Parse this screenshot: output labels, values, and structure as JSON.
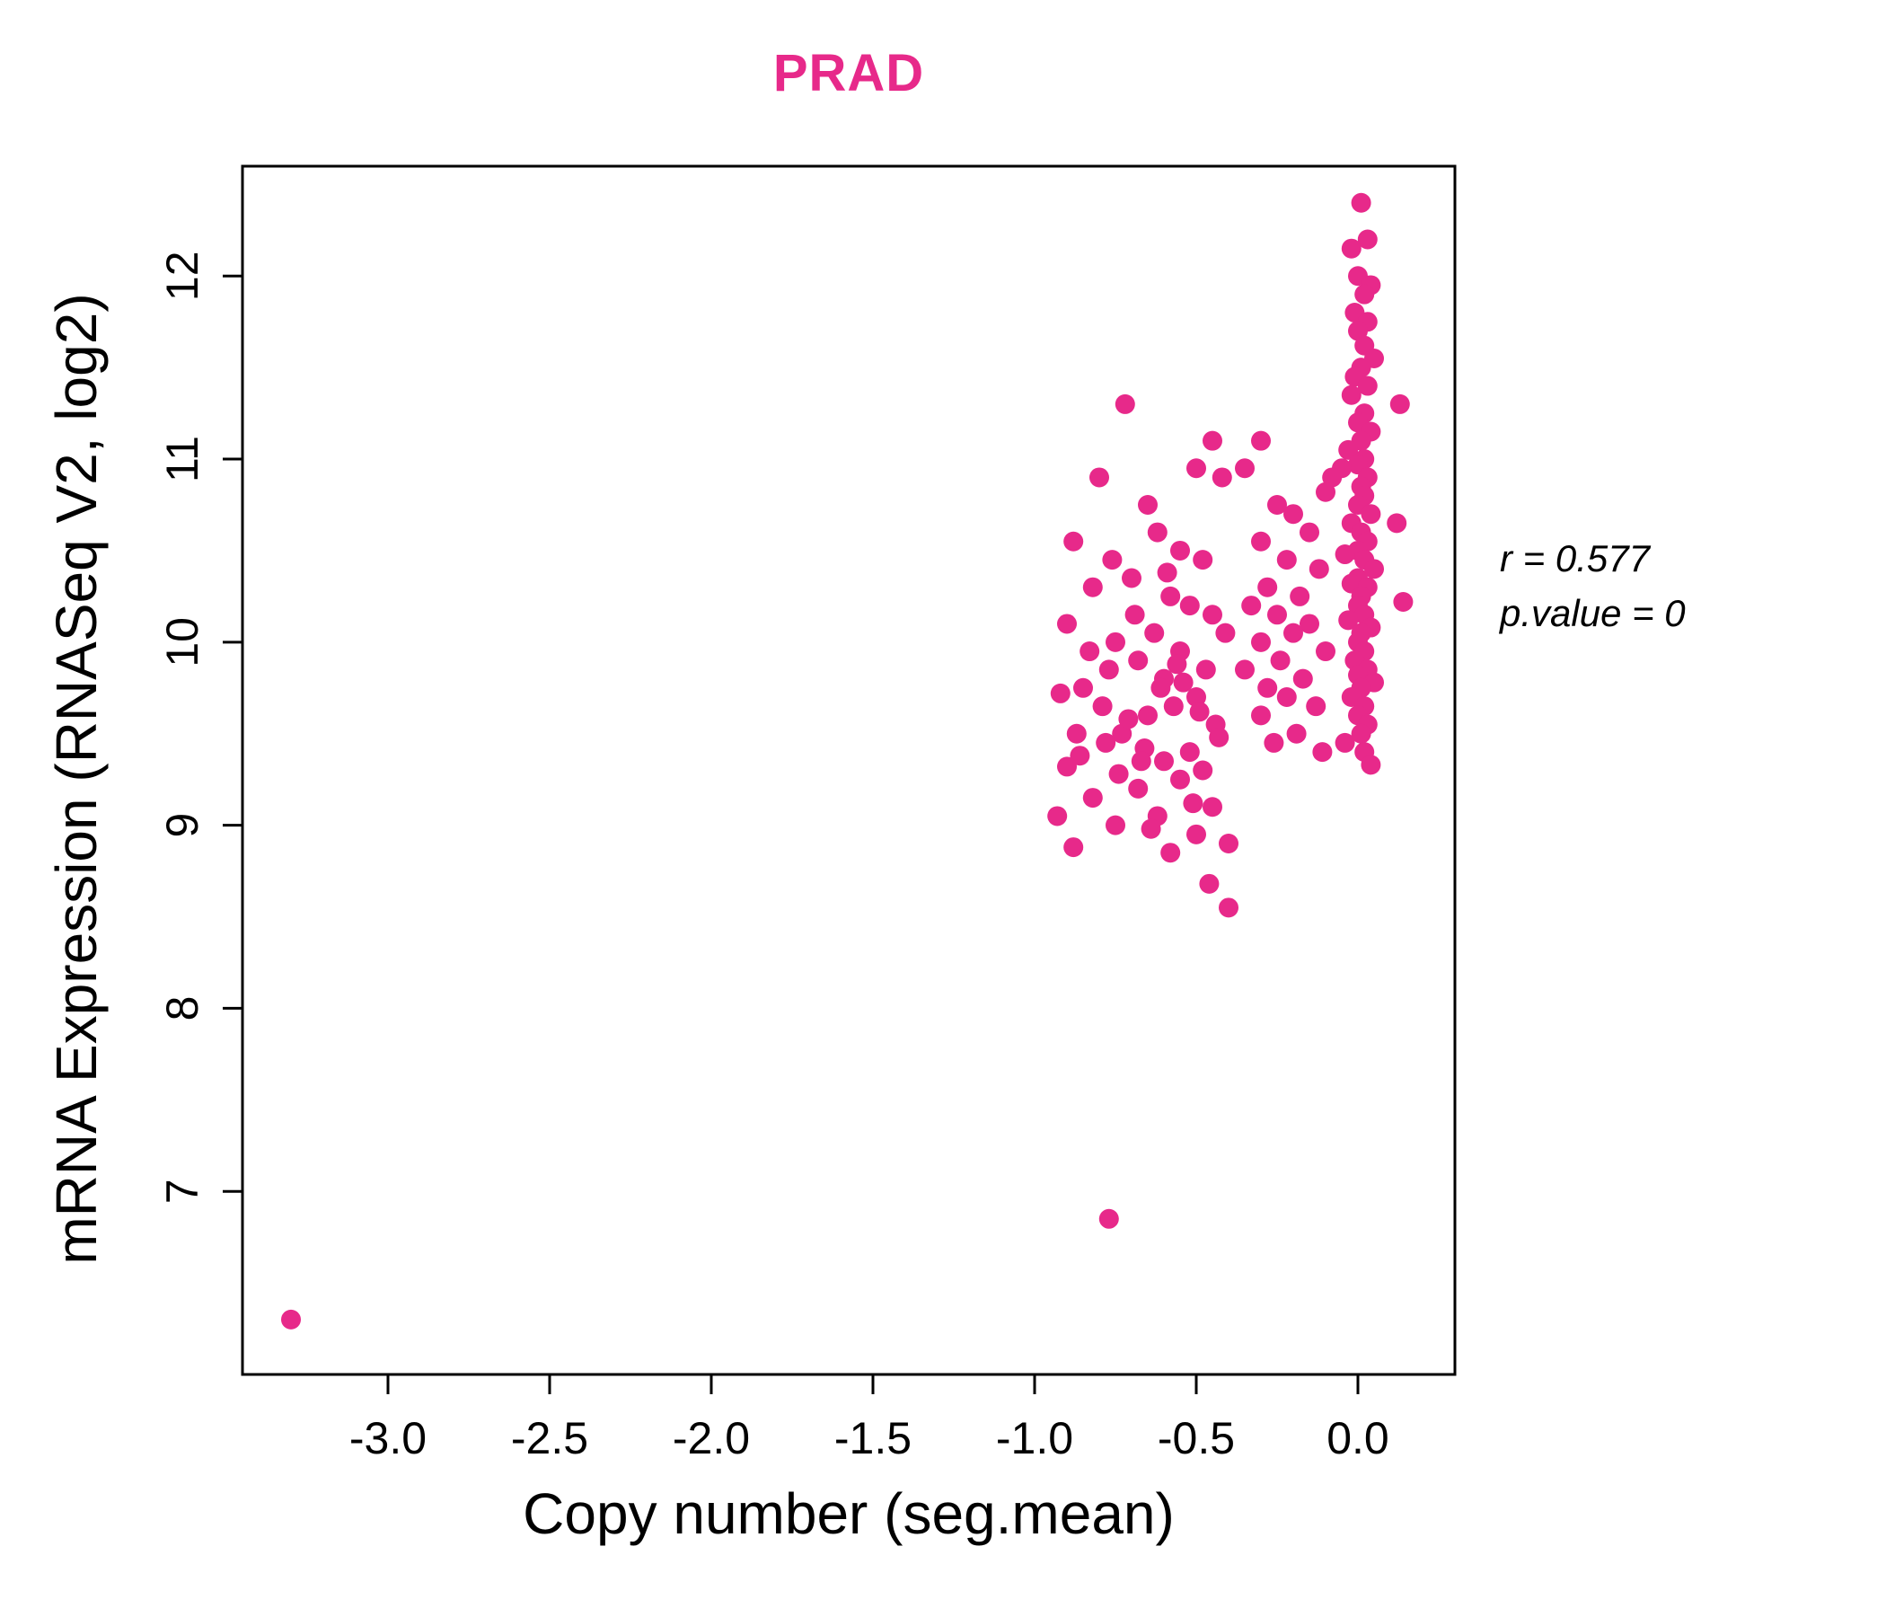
{
  "title": {
    "text": "PRAD",
    "color": "#E7298A"
  },
  "axes": {
    "xlabel": "Copy number (seg.mean)",
    "ylabel": "mRNA Expression (RNASeq V2, log2)"
  },
  "annotation": {
    "line1": "r = 0.577",
    "line2": "p.value = 0"
  },
  "chart_data": {
    "type": "scatter",
    "title": "PRAD",
    "xlabel": "Copy number (seg.mean)",
    "ylabel": "mRNA Expression (RNASeq V2, log2)",
    "xlim": [
      -3.45,
      0.3
    ],
    "ylim": [
      6.0,
      12.6
    ],
    "x_tick_values": [
      -3.0,
      -2.5,
      -2.0,
      -1.5,
      -1.0,
      -0.5,
      0.0
    ],
    "x_tick_labels": [
      "-3.0",
      "-2.5",
      "-2.0",
      "-1.5",
      "-1.0",
      "-0.5",
      "0.0"
    ],
    "y_tick_values": [
      7,
      8,
      9,
      10,
      11,
      12
    ],
    "y_tick_labels": [
      "7",
      "8",
      "9",
      "10",
      "11",
      "12"
    ],
    "point_color": "#E7298A",
    "grid": false,
    "legend": "none",
    "correlation_r": 0.577,
    "p_value": 0,
    "points": [
      [
        0.01,
        12.4
      ],
      [
        0.03,
        12.2
      ],
      [
        -0.02,
        12.15
      ],
      [
        0.0,
        12.0
      ],
      [
        0.04,
        11.95
      ],
      [
        0.02,
        11.9
      ],
      [
        -0.01,
        11.8
      ],
      [
        0.03,
        11.75
      ],
      [
        0.0,
        11.7
      ],
      [
        0.02,
        11.62
      ],
      [
        0.05,
        11.55
      ],
      [
        0.01,
        11.5
      ],
      [
        -0.01,
        11.45
      ],
      [
        0.03,
        11.4
      ],
      [
        -0.02,
        11.35
      ],
      [
        0.13,
        11.3
      ],
      [
        0.02,
        11.25
      ],
      [
        0.0,
        11.2
      ],
      [
        0.04,
        11.15
      ],
      [
        0.01,
        11.1
      ],
      [
        -0.03,
        11.05
      ],
      [
        0.02,
        11.0
      ],
      [
        0.0,
        10.97
      ],
      [
        -0.05,
        10.95
      ],
      [
        0.03,
        10.9
      ],
      [
        -0.08,
        10.9
      ],
      [
        0.01,
        10.85
      ],
      [
        -0.1,
        10.82
      ],
      [
        0.02,
        10.8
      ],
      [
        0.0,
        10.75
      ],
      [
        0.04,
        10.7
      ],
      [
        -0.02,
        10.65
      ],
      [
        0.12,
        10.65
      ],
      [
        0.01,
        10.6
      ],
      [
        0.03,
        10.55
      ],
      [
        0.0,
        10.5
      ],
      [
        -0.04,
        10.48
      ],
      [
        0.02,
        10.45
      ],
      [
        0.05,
        10.4
      ],
      [
        0.0,
        10.35
      ],
      [
        -0.02,
        10.32
      ],
      [
        0.03,
        10.3
      ],
      [
        0.01,
        10.25
      ],
      [
        0.14,
        10.22
      ],
      [
        0.0,
        10.2
      ],
      [
        0.02,
        10.15
      ],
      [
        -0.03,
        10.12
      ],
      [
        0.04,
        10.08
      ],
      [
        0.01,
        10.05
      ],
      [
        0.0,
        10.0
      ],
      [
        0.02,
        9.95
      ],
      [
        -0.01,
        9.9
      ],
      [
        0.03,
        9.85
      ],
      [
        0.0,
        9.82
      ],
      [
        0.05,
        9.78
      ],
      [
        0.01,
        9.75
      ],
      [
        -0.02,
        9.7
      ],
      [
        0.02,
        9.65
      ],
      [
        0.0,
        9.6
      ],
      [
        0.03,
        9.55
      ],
      [
        0.01,
        9.5
      ],
      [
        -0.04,
        9.45
      ],
      [
        0.02,
        9.4
      ],
      [
        0.04,
        9.33
      ],
      [
        -0.3,
        11.1
      ],
      [
        -0.35,
        10.95
      ],
      [
        -0.25,
        10.75
      ],
      [
        -0.2,
        10.7
      ],
      [
        -0.15,
        10.6
      ],
      [
        -0.3,
        10.55
      ],
      [
        -0.22,
        10.45
      ],
      [
        -0.12,
        10.4
      ],
      [
        -0.28,
        10.3
      ],
      [
        -0.18,
        10.25
      ],
      [
        -0.33,
        10.2
      ],
      [
        -0.25,
        10.15
      ],
      [
        -0.15,
        10.1
      ],
      [
        -0.2,
        10.05
      ],
      [
        -0.3,
        10.0
      ],
      [
        -0.1,
        9.95
      ],
      [
        -0.24,
        9.9
      ],
      [
        -0.35,
        9.85
      ],
      [
        -0.17,
        9.8
      ],
      [
        -0.28,
        9.75
      ],
      [
        -0.22,
        9.7
      ],
      [
        -0.13,
        9.65
      ],
      [
        -0.3,
        9.6
      ],
      [
        -0.19,
        9.5
      ],
      [
        -0.26,
        9.45
      ],
      [
        -0.11,
        9.4
      ],
      [
        -0.72,
        11.3
      ],
      [
        -0.8,
        10.9
      ],
      [
        -0.45,
        11.1
      ],
      [
        -0.5,
        10.95
      ],
      [
        -0.42,
        10.9
      ],
      [
        -0.65,
        10.75
      ],
      [
        -0.62,
        10.6
      ],
      [
        -0.88,
        10.55
      ],
      [
        -0.55,
        10.5
      ],
      [
        -0.48,
        10.45
      ],
      [
        -0.7,
        10.35
      ],
      [
        -0.82,
        10.3
      ],
      [
        -0.58,
        10.25
      ],
      [
        -0.52,
        10.2
      ],
      [
        -0.45,
        10.15
      ],
      [
        -0.9,
        10.1
      ],
      [
        -0.63,
        10.05
      ],
      [
        -0.75,
        10.0
      ],
      [
        -0.55,
        9.95
      ],
      [
        -0.68,
        9.9
      ],
      [
        -0.47,
        9.85
      ],
      [
        -0.6,
        9.8
      ],
      [
        -0.85,
        9.75
      ],
      [
        -0.92,
        9.72
      ],
      [
        -0.5,
        9.7
      ],
      [
        -0.57,
        9.65
      ],
      [
        -0.65,
        9.6
      ],
      [
        -0.44,
        9.55
      ],
      [
        -0.73,
        9.5
      ],
      [
        -0.78,
        9.45
      ],
      [
        -0.52,
        9.4
      ],
      [
        -0.86,
        9.38
      ],
      [
        -0.6,
        9.35
      ],
      [
        -0.9,
        9.32
      ],
      [
        -0.48,
        9.3
      ],
      [
        -0.55,
        9.25
      ],
      [
        -0.68,
        9.2
      ],
      [
        -0.82,
        9.15
      ],
      [
        -0.45,
        9.1
      ],
      [
        -0.62,
        9.05
      ],
      [
        -0.75,
        9.0
      ],
      [
        -0.5,
        8.95
      ],
      [
        -0.88,
        8.88
      ],
      [
        -0.4,
        8.9
      ],
      [
        -0.58,
        8.85
      ],
      [
        -0.46,
        8.68
      ],
      [
        -0.4,
        8.55
      ],
      [
        -0.66,
        9.42
      ],
      [
        -0.71,
        9.58
      ],
      [
        -0.54,
        9.78
      ],
      [
        -0.49,
        9.62
      ],
      [
        -0.77,
        9.85
      ],
      [
        -0.69,
        10.15
      ],
      [
        -0.83,
        9.95
      ],
      [
        -0.59,
        10.38
      ],
      [
        -0.74,
        9.28
      ],
      [
        -0.51,
        9.12
      ],
      [
        -0.64,
        8.98
      ],
      [
        -0.79,
        9.65
      ],
      [
        -0.43,
        9.48
      ],
      [
        -0.56,
        9.88
      ],
      [
        -0.61,
        9.75
      ],
      [
        -0.67,
        9.35
      ],
      [
        -0.87,
        9.5
      ],
      [
        -0.93,
        9.05
      ],
      [
        -0.41,
        10.05
      ],
      [
        -0.76,
        10.45
      ],
      [
        -3.3,
        6.3
      ],
      [
        -0.77,
        6.85
      ]
    ]
  }
}
